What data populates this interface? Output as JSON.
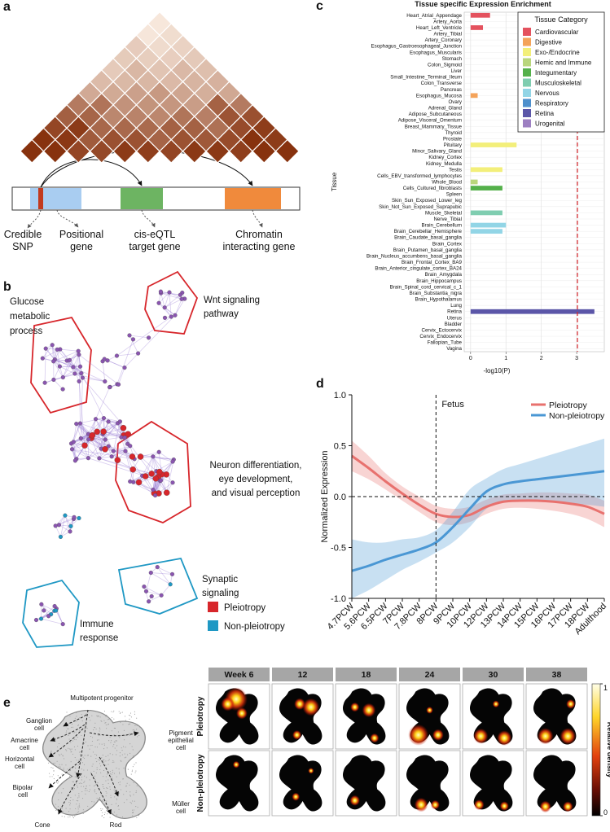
{
  "panel_labels": [
    "a",
    "b",
    "c",
    "d",
    "e"
  ],
  "panel_a": {
    "labels": [
      [
        "Credible",
        "SNP"
      ],
      [
        "Positional",
        "gene"
      ],
      [
        "cis-eQTL",
        "target gene"
      ],
      [
        "Chromatin",
        "interacting gene"
      ]
    ]
  },
  "panel_b": {
    "modules": [
      {
        "label": [
          "Glucose",
          "metabolic",
          "process"
        ]
      },
      {
        "label": [
          "Wnt signaling",
          "pathway"
        ]
      },
      {
        "label": [
          "Neuron differentiation,",
          "eye development,",
          "and visual perception"
        ]
      },
      {
        "label": [
          "Synaptic",
          "signaling"
        ]
      },
      {
        "label": [
          "Immune",
          "response"
        ]
      }
    ],
    "legend": [
      {
        "name": "Pleiotropy",
        "color": "#d7262b"
      },
      {
        "name": "Non-pleiotropy",
        "color": "#1f98c4"
      }
    ]
  },
  "chart_data": [
    {
      "type": "bar",
      "orientation": "horizontal",
      "title": "Tissue specific Expression Enrichment",
      "y_label": "Tissue",
      "x_label": "-log10(P)",
      "categories": [
        "Heart_Atrial_Appendage",
        "Artery_Aorta",
        "Heart_Left_Ventricle",
        "Artery_Tibial",
        "Artery_Coronary",
        "Esophagus_Gastroesophageal_Junction",
        "Esophagus_Muscularis",
        "Stomach",
        "Colon_Sigmoid",
        "Liver",
        "Small_Intestine_Terminal_Ileum",
        "Colon_Transverse",
        "Pancreas",
        "Esophagus_Mucosa",
        "Ovary",
        "Adrenal_Gland",
        "Adipose_Subcutaneous",
        "Adipose_Visceral_Omentum",
        "Breast_Mammary_Tissue",
        "Thyroid",
        "Prostate",
        "Pituitary",
        "Minor_Salivary_Gland",
        "Kidney_Cortex",
        "Kidney_Medulla",
        "Testis",
        "Cells_EBV_transformed_lymphocytes",
        "Whole_Blood",
        "Cells_Cultured_fibroblasts",
        "Spleen",
        "Skin_Sun_Exposed_Lower_leg",
        "Skin_Not_Sun_Exposed_Suprapubic",
        "Muscle_Skeletal",
        "Nerve_Tibial",
        "Brain_Cerebellum",
        "Brain_Cerebellar_Hemisphere",
        "Brain_Caudate_basal_ganglia",
        "Brain_Cortex",
        "Brain_Putamen_basal_ganglia",
        "Brain_Nucleus_accumbens_basal_ganglia",
        "Brain_Frontal_Cortex_BA9",
        "Brain_Anterior_cingulate_cortex_BA24",
        "Brain_Amygdala",
        "Brain_Hippocampus",
        "Brain_Spinal_cord_cervical_c_1",
        "Brain_Substantia_nigra",
        "Brain_Hypothalamus",
        "Lung",
        "Retina",
        "Uterus",
        "Bladder",
        "Cervix_Ectocervix",
        "Cervix_Endocervix",
        "Fallopian_Tube",
        "Vagina"
      ],
      "values": [
        0.55,
        0,
        0.35,
        0,
        0,
        0,
        0,
        0,
        0,
        0,
        0,
        0,
        0,
        0.2,
        0,
        0,
        0,
        0,
        0,
        0,
        0,
        1.3,
        0,
        0,
        0,
        0.9,
        0,
        0.2,
        0.9,
        0,
        0,
        0,
        0.9,
        0,
        1.0,
        0.9,
        0,
        0,
        0,
        0,
        0,
        0,
        0,
        0,
        0,
        0,
        0,
        0,
        3.5,
        0,
        0,
        0,
        0,
        0,
        0
      ],
      "colors": [
        "#e4525e",
        "#e4525e",
        "#e4525e",
        "#e4525e",
        "#e4525e",
        "#f4a35a",
        "#f4a35a",
        "#f4a35a",
        "#f4a35a",
        "#f4a35a",
        "#f4a35a",
        "#f4a35a",
        "#f4a35a",
        "#f4a35a",
        "#9d80c2",
        "#f3ef7a",
        "#54b04a",
        "#54b04a",
        "#54b04a",
        "#f3ef7a",
        "#9d80c2",
        "#f3ef7a",
        "#f4a35a",
        "#9d80c2",
        "#9d80c2",
        "#f3ef7a",
        "#b9d67c",
        "#b9d67c",
        "#54b04a",
        "#b9d67c",
        "#54b04a",
        "#54b04a",
        "#7fcdb0",
        "#92d5e6",
        "#92d5e6",
        "#92d5e6",
        "#92d5e6",
        "#92d5e6",
        "#92d5e6",
        "#92d5e6",
        "#92d5e6",
        "#92d5e6",
        "#92d5e6",
        "#92d5e6",
        "#92d5e6",
        "#92d5e6",
        "#92d5e6",
        "#4d8fcc",
        "#5b56a8",
        "#9d80c2",
        "#9d80c2",
        "#9d80c2",
        "#9d80c2",
        "#9d80c2",
        "#9d80c2"
      ],
      "xlim": [
        -0.18,
        3.78
      ],
      "xticks": [
        0,
        1,
        2,
        3
      ],
      "grid": true,
      "threshold": 3.02,
      "threshold_color": "#d7262b",
      "legend": {
        "title": "Tissue Category",
        "position": "upper right",
        "entries": [
          {
            "name": "Cardiovascular",
            "color": "#e4525e"
          },
          {
            "name": "Digestive",
            "color": "#f4a35a"
          },
          {
            "name": "Exo-/Endocrine",
            "color": "#f3ef7a"
          },
          {
            "name": "Hemic and Immune",
            "color": "#b9d67c"
          },
          {
            "name": "Integumentary",
            "color": "#54b04a"
          },
          {
            "name": "Musculoskeletal",
            "color": "#7fcdb0"
          },
          {
            "name": "Nervous",
            "color": "#92d5e6"
          },
          {
            "name": "Respiratory",
            "color": "#4d8fcc"
          },
          {
            "name": "Retina",
            "color": "#5b56a8"
          },
          {
            "name": "Urogenital",
            "color": "#9d80c2"
          }
        ]
      }
    },
    {
      "type": "line",
      "y_label": "Normalized Expression",
      "categories": [
        "4.7PCW",
        "5.6PCW",
        "6.5PCW",
        "7PCW",
        "7.8PCW",
        "8PCW",
        "9PCW",
        "10PCW",
        "12PCW",
        "13PCW",
        "14PCW",
        "15PCW",
        "16PCW",
        "17PCW",
        "18PCW",
        "Adulthood"
      ],
      "series": [
        {
          "name": "Pleiotropy",
          "color": "#e8716e",
          "values": [
            0.4,
            0.28,
            0.15,
            0.03,
            -0.08,
            -0.17,
            -0.2,
            -0.18,
            -0.1,
            -0.05,
            -0.04,
            -0.04,
            -0.05,
            -0.07,
            -0.1,
            -0.17
          ],
          "lower": [
            0.25,
            0.17,
            0.07,
            -0.04,
            -0.15,
            -0.25,
            -0.28,
            -0.25,
            -0.17,
            -0.12,
            -0.11,
            -0.12,
            -0.14,
            -0.17,
            -0.22,
            -0.3
          ],
          "upper": [
            0.55,
            0.4,
            0.23,
            0.1,
            0,
            -0.09,
            -0.12,
            -0.1,
            -0.03,
            0.02,
            0.03,
            0.04,
            0.04,
            0.03,
            0.02,
            -0.04
          ]
        },
        {
          "name": "Non-pleiotropy",
          "color": "#4a97d4",
          "values": [
            -0.73,
            -0.68,
            -0.62,
            -0.57,
            -0.52,
            -0.45,
            -0.3,
            -0.12,
            0.05,
            0.12,
            0.15,
            0.17,
            0.19,
            0.21,
            0.23,
            0.25
          ],
          "lower": [
            -1.0,
            -0.92,
            -0.82,
            -0.72,
            -0.64,
            -0.55,
            -0.45,
            -0.3,
            -0.12,
            -0.05,
            -0.05,
            -0.05,
            -0.06,
            -0.07,
            -0.08,
            -0.1
          ],
          "upper": [
            -0.42,
            -0.45,
            -0.45,
            -0.42,
            -0.4,
            -0.33,
            -0.15,
            0.07,
            0.18,
            0.27,
            0.32,
            0.37,
            0.42,
            0.47,
            0.52,
            0.57
          ]
        }
      ],
      "ylim": [
        -1,
        1
      ],
      "yticks": [
        {
          "value": -1,
          "label": "-1.0"
        },
        -0.5,
        {
          "value": 0,
          "label": "0.0"
        },
        0.5,
        {
          "value": 1,
          "label": "1.0"
        }
      ],
      "reference_line": 0,
      "annotation": {
        "text": "Fetus",
        "at": "8PCW"
      },
      "legend_position": "upper right"
    }
  ],
  "panel_e": {
    "weeks": [
      "Week 6",
      "12",
      "18",
      "24",
      "30",
      "38"
    ],
    "rows": [
      "Pleiotropy",
      "Non-pleiotropy"
    ],
    "colorbar": {
      "label": "Relative density",
      "ticks": [
        0,
        1
      ]
    },
    "cell_types": [
      {
        "label": [
          "Multipotent progenitor"
        ]
      },
      {
        "label": [
          "Ganglion",
          "cell"
        ]
      },
      {
        "label": [
          "Amacrine",
          "cell"
        ]
      },
      {
        "label": [
          "Horizontal",
          "cell"
        ]
      },
      {
        "label": [
          "Pigment",
          "epithelial",
          "cell"
        ]
      },
      {
        "label": [
          "Bipolar",
          "cell"
        ]
      },
      {
        "label": [
          "Müller",
          "cell"
        ]
      },
      {
        "label": [
          "Cone"
        ]
      },
      {
        "label": [
          "Rod"
        ]
      }
    ]
  }
}
